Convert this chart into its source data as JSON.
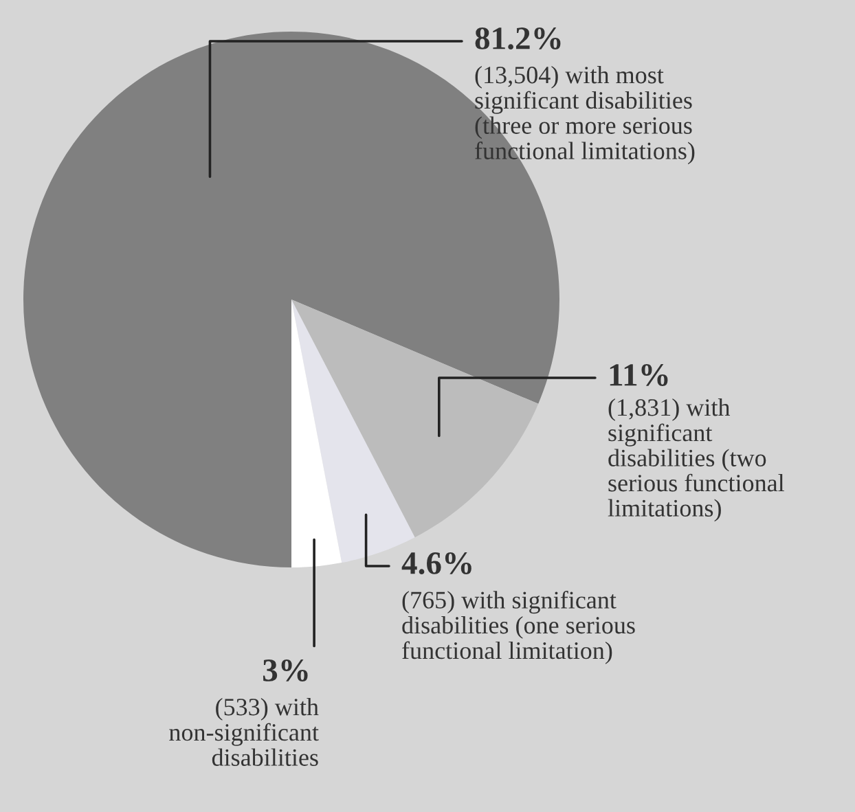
{
  "chart_data": {
    "type": "pie",
    "categories": [
      "(13,504) with most\nsignificant disabilities\n(three or more serious\nfunctional limitations)",
      "(1,831) with\nsignificant\ndisabilities (two\nserious functional\nlimitations)",
      "(765) with significant\ndisabilities (one serious\nfunctional limitation)",
      "(533) with\nnon-significant\ndisabilities"
    ],
    "values": [
      81.2,
      11,
      4.6,
      3
    ],
    "value_labels": [
      "81.2%",
      "11%",
      "4.6%",
      "3%"
    ],
    "colors": [
      "#808080",
      "#bcbcbc",
      "#e4e4ec",
      "#ffffff"
    ],
    "legend": false
  }
}
